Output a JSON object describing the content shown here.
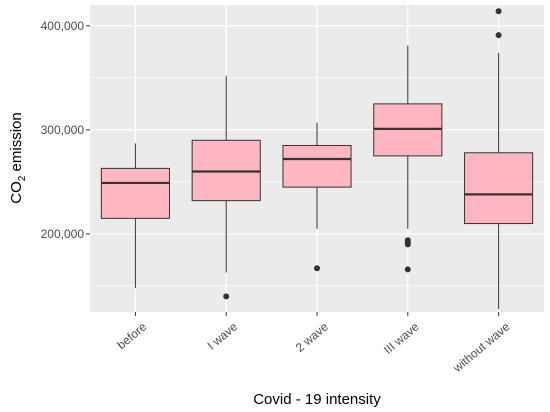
{
  "chart_data": {
    "type": "boxplot",
    "xlabel": "Covid - 19 intensity",
    "ylabel_main": "CO",
    "ylabel_sub": "2",
    "ylabel_rest": " emission",
    "categories": [
      "before",
      "I wave",
      "2 wave",
      "III wave",
      "without wave"
    ],
    "ylim": [
      125000,
      420000
    ],
    "yticks": [
      200000,
      300000,
      400000
    ],
    "ytick_labels": [
      "200,000",
      "300,000",
      "400,000"
    ],
    "grid": true,
    "boxes": [
      {
        "category": "before",
        "whisker_low": 148000,
        "q1": 215000,
        "median": 249000,
        "q3": 263000,
        "whisker_high": 287000,
        "outliers": []
      },
      {
        "category": "I wave",
        "whisker_low": 163000,
        "q1": 232000,
        "median": 260000,
        "q3": 290000,
        "whisker_high": 352000,
        "outliers": [
          140000
        ]
      },
      {
        "category": "2 wave",
        "whisker_low": 205000,
        "q1": 245000,
        "median": 272000,
        "q3": 285000,
        "whisker_high": 307000,
        "outliers": [
          167000
        ]
      },
      {
        "category": "III wave",
        "whisker_low": 205000,
        "q1": 275000,
        "median": 301000,
        "q3": 325000,
        "whisker_high": 381000,
        "outliers": [
          190000,
          192000,
          194000,
          166000
        ]
      },
      {
        "category": "without wave",
        "whisker_low": 128000,
        "q1": 210000,
        "median": 238000,
        "q3": 278000,
        "whisker_high": 374000,
        "outliers": [
          391000,
          414000
        ]
      }
    ],
    "colors": {
      "box_fill": "#ffb6c1",
      "box_stroke": "#333333",
      "panel_bg": "#ebebeb",
      "grid": "#ffffff"
    }
  }
}
